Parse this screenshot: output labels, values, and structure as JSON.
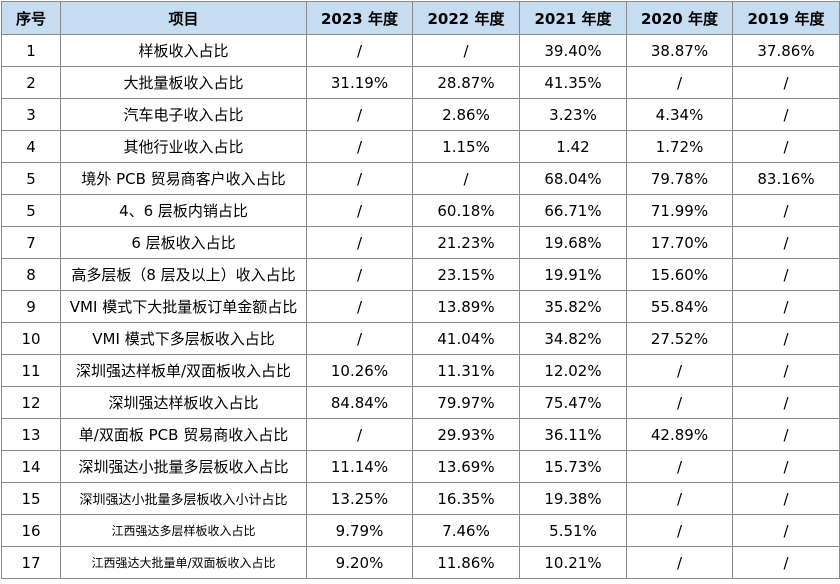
{
  "table": {
    "headers": [
      "序号",
      "项目",
      "2023 年度",
      "2022 年度",
      "2021 年度",
      "2020 年度",
      "2019 年度"
    ],
    "rows": [
      {
        "no": "1",
        "item": "样板收入占比",
        "y2023": "/",
        "y2022": "/",
        "y2021": "39.40%",
        "y2020": "38.87%",
        "y2019": "37.86%"
      },
      {
        "no": "2",
        "item": "大批量板收入占比",
        "y2023": "31.19%",
        "y2022": "28.87%",
        "y2021": "41.35%",
        "y2020": "/",
        "y2019": "/"
      },
      {
        "no": "3",
        "item": "汽车电子收入占比",
        "y2023": "/",
        "y2022": "2.86%",
        "y2021": "3.23%",
        "y2020": "4.34%",
        "y2019": "/"
      },
      {
        "no": "4",
        "item": "其他行业收入占比",
        "y2023": "/",
        "y2022": "1.15%",
        "y2021": "1.42",
        "y2020": "1.72%",
        "y2019": "/"
      },
      {
        "no": "5",
        "item": "境外 PCB 贸易商客户收入占比",
        "y2023": "/",
        "y2022": "/",
        "y2021": "68.04%",
        "y2020": "79.78%",
        "y2019": "83.16%"
      },
      {
        "no": "5",
        "item": "4、6 层板内销占比",
        "y2023": "/",
        "y2022": "60.18%",
        "y2021": "66.71%",
        "y2020": "71.99%",
        "y2019": "/"
      },
      {
        "no": "7",
        "item": "6 层板收入占比",
        "y2023": "/",
        "y2022": "21.23%",
        "y2021": "19.68%",
        "y2020": "17.70%",
        "y2019": "/"
      },
      {
        "no": "8",
        "item": "高多层板（8 层及以上）收入占比",
        "y2023": "/",
        "y2022": "23.15%",
        "y2021": "19.91%",
        "y2020": "15.60%",
        "y2019": "/"
      },
      {
        "no": "9",
        "item": "VMI 模式下大批量板订单金额占比",
        "y2023": "/",
        "y2022": "13.89%",
        "y2021": "35.82%",
        "y2020": "55.84%",
        "y2019": "/"
      },
      {
        "no": "10",
        "item": "VMI 模式下多层板收入占比",
        "y2023": "/",
        "y2022": "41.04%",
        "y2021": "34.82%",
        "y2020": "27.52%",
        "y2019": "/"
      },
      {
        "no": "11",
        "item": "深圳强达样板单/双面板收入占比",
        "y2023": "10.26%",
        "y2022": "11.31%",
        "y2021": "12.02%",
        "y2020": "/",
        "y2019": "/"
      },
      {
        "no": "12",
        "item": "深圳强达样板收入占比",
        "y2023": "84.84%",
        "y2022": "79.97%",
        "y2021": "75.47%",
        "y2020": "/",
        "y2019": "/"
      },
      {
        "no": "13",
        "item": "单/双面板 PCB 贸易商收入占比",
        "y2023": "/",
        "y2022": "29.93%",
        "y2021": "36.11%",
        "y2020": "42.89%",
        "y2019": "/"
      },
      {
        "no": "14",
        "item": "深圳强达小批量多层板收入占比",
        "y2023": "11.14%",
        "y2022": "13.69%",
        "y2021": "15.73%",
        "y2020": "/",
        "y2019": "/"
      },
      {
        "no": "15",
        "item": "深圳强达小批量多层板收入小计占比",
        "y2023": "13.25%",
        "y2022": "16.35%",
        "y2021": "19.38%",
        "y2020": "/",
        "y2019": "/"
      },
      {
        "no": "16",
        "item": "江西强达多层样板收入占比",
        "y2023": "9.79%",
        "y2022": "7.46%",
        "y2021": "5.51%",
        "y2020": "/",
        "y2019": "/"
      },
      {
        "no": "17",
        "item": "江西强达大批量单/双面板收入占比",
        "y2023": "9.20%",
        "y2022": "11.86%",
        "y2021": "10.21%",
        "y2020": "/",
        "y2019": "/"
      }
    ]
  }
}
